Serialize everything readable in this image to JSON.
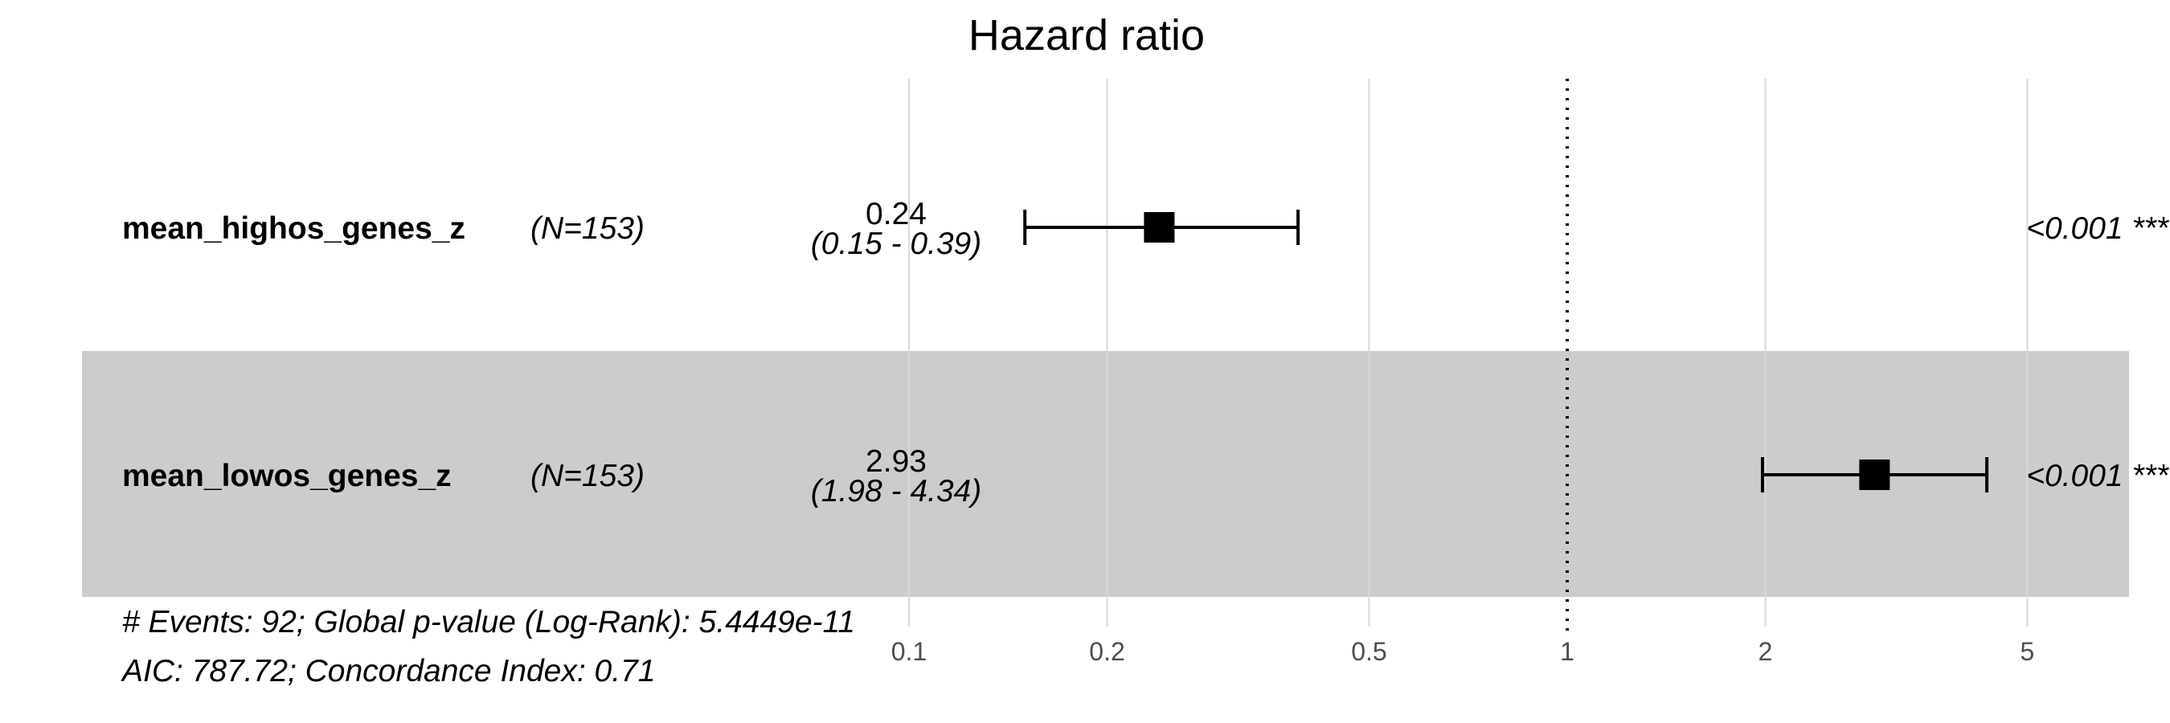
{
  "chart_data": {
    "type": "forest",
    "title": "Hazard ratio",
    "x_scale": "log",
    "xlim": [
      0.1,
      6.3
    ],
    "x_ticks": [
      "0.1",
      "0.2",
      "0.5",
      "1",
      "2",
      "5"
    ],
    "x_tick_values": [
      0.1,
      0.2,
      0.5,
      1,
      2,
      5
    ],
    "reference_line": 1,
    "grid": true,
    "rows": [
      {
        "variable": "mean_highos_genes_z",
        "n_label": "(N=153)",
        "estimate": 0.24,
        "estimate_label": "0.24",
        "ci_low": 0.15,
        "ci_high": 0.39,
        "ci_label": "(0.15 - 0.39)",
        "p_label": "<0.001 ***",
        "shaded": false
      },
      {
        "variable": "mean_lowos_genes_z",
        "n_label": "(N=153)",
        "estimate": 2.93,
        "estimate_label": "2.93",
        "ci_low": 1.98,
        "ci_high": 4.34,
        "ci_label": "(1.98 - 4.34)",
        "p_label": "<0.001 ***",
        "shaded": true
      }
    ],
    "footnotes": [
      "# Events: 92; Global p-value (Log-Rank): 5.4449e-11",
      "AIC: 787.72; Concordance Index: 0.71"
    ]
  },
  "colors": {
    "shade": "#cccccc",
    "grid": "#d9d9d9",
    "marker": "#000000",
    "tick_text": "#4d4d4d"
  }
}
